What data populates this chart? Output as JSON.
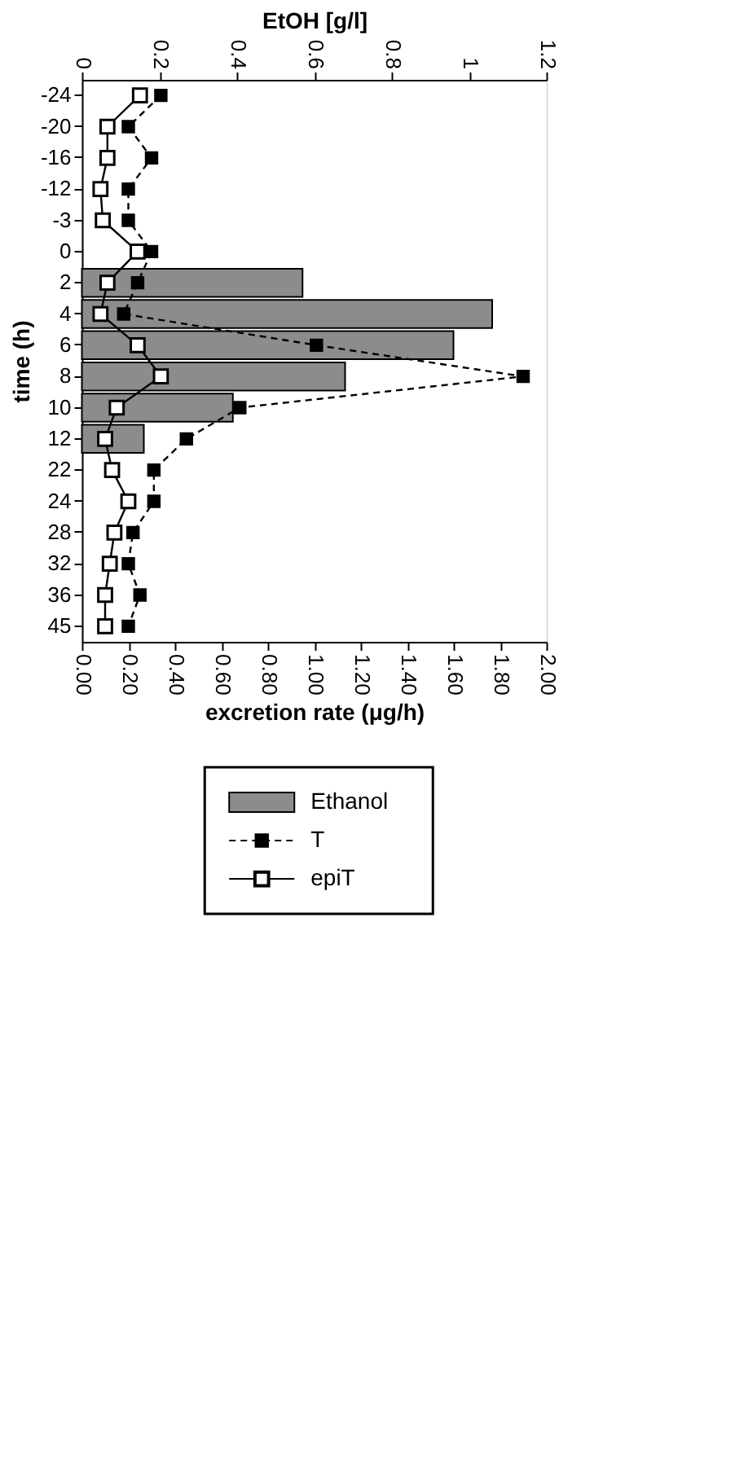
{
  "chart_data": {
    "type": "bar",
    "orientation": "horizontal",
    "xlabel": "excretion rate (μg/h)",
    "x2label": "EtOH [g/l]",
    "ylabel": "time (h)",
    "categories": [
      "-24",
      "-20",
      "-16",
      "-12",
      "-3",
      "0",
      "2",
      "4",
      "6",
      "8",
      "10",
      "12",
      "22",
      "24",
      "28",
      "32",
      "36",
      "45"
    ],
    "xlim": [
      0,
      2
    ],
    "xticks": [
      {
        "value": 0,
        "label": "0.00"
      },
      {
        "value": 0.2,
        "label": "0.20"
      },
      {
        "value": 0.4,
        "label": "0.40"
      },
      {
        "value": 0.6,
        "label": "0.60"
      },
      {
        "value": 0.8,
        "label": "0.80"
      },
      {
        "value": 1,
        "label": "1.00"
      },
      {
        "value": 1.2,
        "label": "1.20"
      },
      {
        "value": 1.4,
        "label": "1.40"
      },
      {
        "value": 1.6,
        "label": "1.60"
      },
      {
        "value": 1.8,
        "label": "1.80"
      },
      {
        "value": 2,
        "label": "2.00"
      }
    ],
    "x2lim": [
      0,
      1.2
    ],
    "x2ticks": [
      0,
      0.2,
      0.4,
      0.6,
      0.8,
      1,
      1.2
    ],
    "series": [
      {
        "name": "Ethanol",
        "type": "bar",
        "axis": "x2",
        "color": "#8c8c8c",
        "values": [
          null,
          null,
          null,
          null,
          null,
          null,
          0.57,
          1.06,
          0.96,
          0.68,
          0.39,
          0.16,
          null,
          null,
          null,
          null,
          null,
          null
        ]
      },
      {
        "name": "T",
        "type": "line",
        "color": "#000000",
        "line_style": "dashed",
        "values": [
          0.34,
          0.2,
          0.3,
          0.2,
          0.2,
          0.3,
          0.24,
          0.18,
          1.01,
          1.9,
          0.68,
          0.45,
          0.31,
          0.31,
          0.22,
          0.2,
          0.25,
          0.2
        ]
      },
      {
        "name": "epiT",
        "type": "line",
        "color": "#000000",
        "line_style": "solid",
        "values": [
          0.25,
          0.11,
          0.11,
          0.08,
          0.09,
          0.24,
          0.11,
          0.08,
          0.24,
          0.34,
          0.15,
          0.1,
          0.13,
          0.2,
          0.14,
          0.12,
          0.1,
          0.1
        ]
      }
    ],
    "marker": "square",
    "grid": false,
    "legend": "bottom"
  }
}
